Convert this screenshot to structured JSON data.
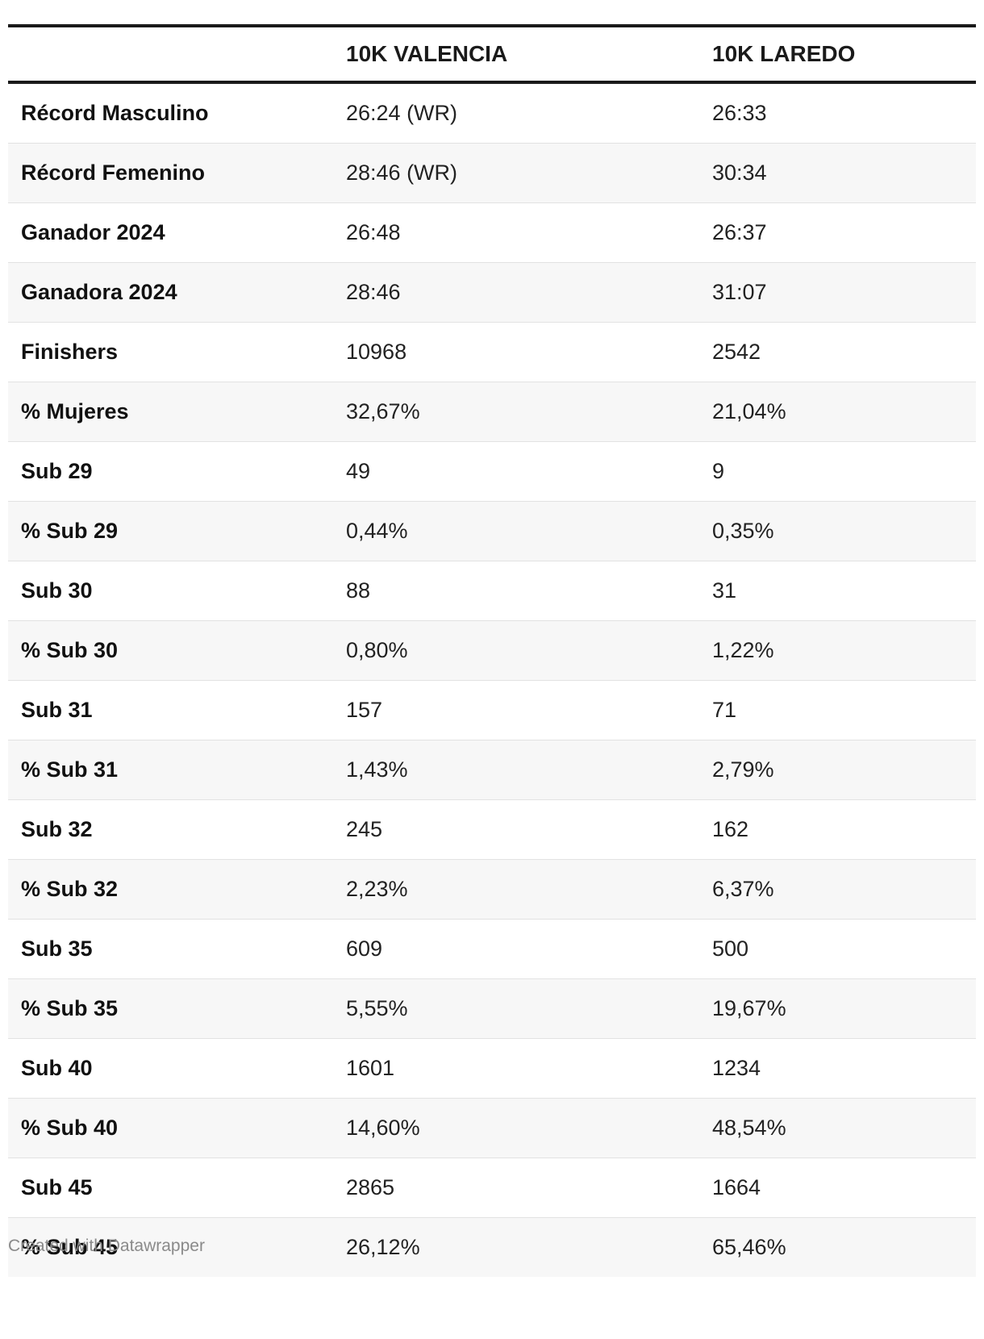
{
  "chart_data": {
    "type": "table",
    "columns": [
      "",
      "10K VALENCIA",
      "10K LAREDO"
    ],
    "rows": [
      [
        "Récord Masculino",
        "26:24 (WR)",
        "26:33"
      ],
      [
        "Récord Femenino",
        "28:46 (WR)",
        "30:34"
      ],
      [
        "Ganador 2024",
        "26:48",
        "26:37"
      ],
      [
        "Ganadora 2024",
        "28:46",
        "31:07"
      ],
      [
        "Finishers",
        "10968",
        "2542"
      ],
      [
        "% Mujeres",
        "32,67%",
        "21,04%"
      ],
      [
        "Sub 29",
        "49",
        "9"
      ],
      [
        "% Sub 29",
        "0,44%",
        "0,35%"
      ],
      [
        "Sub 30",
        "88",
        "31"
      ],
      [
        "% Sub 30",
        "0,80%",
        "1,22%"
      ],
      [
        "Sub 31",
        "157",
        "71"
      ],
      [
        "% Sub 31",
        "1,43%",
        "2,79%"
      ],
      [
        "Sub 32",
        "245",
        "162"
      ],
      [
        "% Sub 32",
        "2,23%",
        "6,37%"
      ],
      [
        "Sub 35",
        "609",
        "500"
      ],
      [
        "% Sub 35",
        "5,55%",
        "19,67%"
      ],
      [
        "Sub 40",
        "1601",
        "1234"
      ],
      [
        "% Sub 40",
        "14,60%",
        "48,54%"
      ],
      [
        "Sub 45",
        "2865",
        "1664"
      ],
      [
        "% Sub 45",
        "26,12%",
        "65,46%"
      ]
    ]
  },
  "footer": {
    "credit": "Created with Datawrapper"
  },
  "colors": {
    "header_rule": "#1a1a1a",
    "stripe": "#f7f7f7",
    "row_divider": "#e2e2e2",
    "credit_text": "#8a8a8a"
  }
}
